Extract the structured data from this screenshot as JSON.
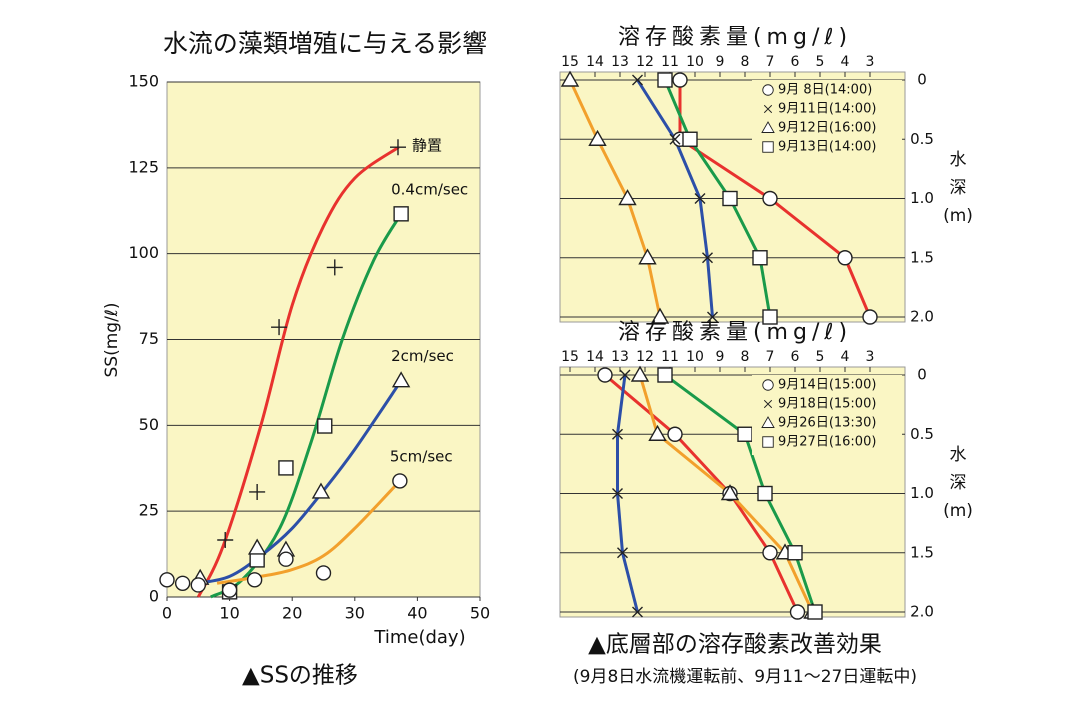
{
  "chart_data": [
    {
      "type": "scatter",
      "title": "水流の藻類増殖に与える影響",
      "xlabel": "Time(day)",
      "ylabel": "SS(mg/ℓ)",
      "caption": "▲SSの推移",
      "xlim": [
        0,
        50
      ],
      "xticks": [
        0,
        10,
        20,
        30,
        40,
        50
      ],
      "ylim": [
        0,
        150
      ],
      "yticks": [
        0,
        25,
        50,
        75,
        100,
        125,
        150
      ],
      "grid": true,
      "series": [
        {
          "name": "静置",
          "color": "#e8322e",
          "marker": "plus",
          "x": [
            9.3,
            14.4,
            17.9,
            26.8,
            36.9
          ],
          "values": [
            16.6,
            30.6,
            78.6,
            96,
            131
          ],
          "fit_x": [
            5,
            9,
            15,
            20,
            25,
            30,
            37
          ],
          "fit_y": [
            0,
            15,
            50,
            85,
            108,
            122,
            131
          ]
        },
        {
          "name": "0.4cm/sec",
          "color": "#1a9a4a",
          "marker": "square",
          "x": [
            10,
            14.4,
            19,
            25.2,
            37.4
          ],
          "values": [
            1.5,
            10.8,
            37.6,
            49.8,
            111.6
          ],
          "fit_x": [
            7,
            12,
            18,
            23,
            28,
            33,
            37.4
          ],
          "fit_y": [
            0,
            5,
            20,
            45,
            75,
            98,
            111.6
          ]
        },
        {
          "name": "2cm/sec",
          "color": "#2c4fa8",
          "marker": "triangle",
          "x": [
            5.3,
            14.4,
            19,
            24.6,
            37.4
          ],
          "values": [
            5.5,
            14.3,
            13.7,
            30.6,
            63
          ],
          "fit_x": [
            5,
            10,
            15,
            20,
            25,
            30,
            37.4
          ],
          "fit_y": [
            4,
            6,
            12,
            20,
            31,
            43,
            63
          ]
        },
        {
          "name": "5cm/sec",
          "color": "#f2a02c",
          "marker": "circle",
          "x": [
            0,
            2.5,
            5,
            10,
            14,
            19,
            25,
            37.2
          ],
          "values": [
            5,
            4,
            3.5,
            2,
            5,
            11,
            7,
            33.8
          ],
          "fit_x": [
            8,
            15,
            20,
            25,
            30,
            37.2
          ],
          "fit_y": [
            4,
            6,
            8,
            12,
            20,
            33.8
          ]
        }
      ]
    },
    {
      "type": "profile",
      "title": "溶存酸素量(mg/ℓ)",
      "ylabel_lines": [
        "水",
        "深",
        "(m)"
      ],
      "xlim": [
        15,
        3
      ],
      "xticks": [
        15,
        14,
        13,
        12,
        11,
        10,
        9,
        8,
        7,
        6,
        5,
        4,
        3
      ],
      "ylim": [
        0,
        2
      ],
      "yticks": [
        0,
        0.5,
        {
          "value": 1,
          "label": "1.0"
        },
        1.5,
        {
          "value": 2,
          "label": "2.0"
        }
      ],
      "y": [
        0,
        0.5,
        1,
        1.5,
        2
      ],
      "grid": true,
      "legend": "upper-right",
      "series": [
        {
          "name": "9月 8日(14:00)",
          "color": "#e8322e",
          "marker": "circle",
          "values": [
            10.6,
            10.6,
            7.0,
            4.0,
            3.0
          ]
        },
        {
          "name": "9月11日(14:00)",
          "color": "#2c4fa8",
          "marker": "cross",
          "values": [
            12.3,
            10.8,
            9.8,
            9.5,
            9.3
          ]
        },
        {
          "name": "9月12日(16:00)",
          "color": "#f2a02c",
          "marker": "triangle",
          "values": [
            15,
            13.9,
            12.7,
            11.9,
            11.4
          ]
        },
        {
          "name": "9月13日(14:00)",
          "color": "#1a9a4a",
          "marker": "square",
          "values": [
            11.2,
            10.2,
            8.6,
            7.4,
            7.0
          ]
        }
      ]
    },
    {
      "type": "profile",
      "title": "溶存酸素量(mg/ℓ)",
      "ylabel_lines": [
        "水",
        "深",
        "(m)"
      ],
      "caption": "▲底層部の溶存酸素改善効果",
      "note": "(9月8日水流機運転前、9月11～27日運転中)",
      "xlim": [
        15,
        3
      ],
      "xticks": [
        15,
        14,
        13,
        12,
        11,
        10,
        9,
        8,
        7,
        6,
        5,
        4,
        3
      ],
      "ylim": [
        0,
        2
      ],
      "yticks": [
        0,
        0.5,
        {
          "value": 1,
          "label": "1.0"
        },
        1.5,
        {
          "value": 2,
          "label": "2.0"
        }
      ],
      "y": [
        0,
        0.5,
        1,
        1.5,
        2
      ],
      "grid": true,
      "legend": "upper-right",
      "series": [
        {
          "name": "9月14日(15:00)",
          "color": "#e8322e",
          "marker": "circle",
          "values": [
            13.6,
            10.8,
            8.6,
            7.0,
            5.9
          ]
        },
        {
          "name": "9月18日(15:00)",
          "color": "#2c4fa8",
          "marker": "cross",
          "values": [
            12.8,
            13.1,
            13.1,
            12.9,
            12.3
          ]
        },
        {
          "name": "9月26日(13:30)",
          "color": "#f2a02c",
          "marker": "triangle",
          "values": [
            12.2,
            11.5,
            8.6,
            6.4,
            5.3
          ]
        },
        {
          "name": "9月27日(16:00)",
          "color": "#1a9a4a",
          "marker": "square",
          "values": [
            11.2,
            8.0,
            7.2,
            6.0,
            5.2
          ]
        }
      ]
    }
  ]
}
